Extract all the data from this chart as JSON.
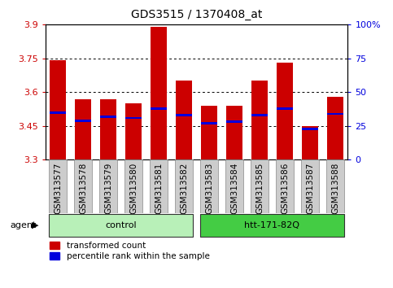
{
  "title": "GDS3515 / 1370408_at",
  "samples": [
    "GSM313577",
    "GSM313578",
    "GSM313579",
    "GSM313580",
    "GSM313581",
    "GSM313582",
    "GSM313583",
    "GSM313584",
    "GSM313585",
    "GSM313586",
    "GSM313587",
    "GSM313588"
  ],
  "transformed_count": [
    3.74,
    3.57,
    3.57,
    3.55,
    3.89,
    3.65,
    3.54,
    3.54,
    3.65,
    3.73,
    3.45,
    3.58
  ],
  "percentile_rank": [
    35,
    29,
    32,
    31,
    38,
    33,
    27,
    28,
    33,
    38,
    23,
    34
  ],
  "groups": [
    {
      "label": "control",
      "samples_idx": [
        0,
        1,
        2,
        3,
        4,
        5
      ],
      "color": "#b8f0b8"
    },
    {
      "label": "htt-171-82Q",
      "samples_idx": [
        6,
        7,
        8,
        9,
        10,
        11
      ],
      "color": "#44cc44"
    }
  ],
  "ylim_left": [
    3.3,
    3.9
  ],
  "ylim_right": [
    0,
    100
  ],
  "yticks_left": [
    3.3,
    3.45,
    3.6,
    3.75,
    3.9
  ],
  "yticks_right": [
    0,
    25,
    50,
    75,
    100
  ],
  "ytick_labels_right": [
    "0",
    "25",
    "50",
    "75",
    "100%"
  ],
  "bar_color": "#cc0000",
  "blue_color": "#0000dd",
  "grid_color": "#000000",
  "bar_width": 0.65,
  "agent_label": "agent",
  "left_tick_color": "#cc0000",
  "right_tick_color": "#0000dd",
  "tick_box_color": "#cccccc",
  "tick_box_edge_color": "#888888"
}
